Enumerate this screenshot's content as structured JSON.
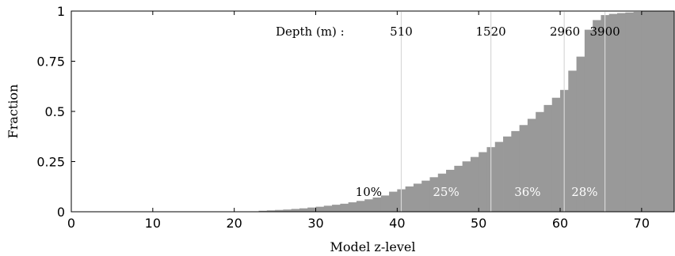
{
  "chart_data": {
    "type": "bar",
    "title": "",
    "xlabel": "Model z-level",
    "ylabel": "Fraction",
    "xlim": [
      0,
      74
    ],
    "ylim": [
      0,
      1
    ],
    "x_ticks": [
      "0",
      "10",
      "20",
      "30",
      "40",
      "50",
      "60",
      "70"
    ],
    "y_ticks": [
      "0",
      "0.25",
      "0.5",
      "0.75",
      "1"
    ],
    "grid": false,
    "legend": "none",
    "bar_color": "#999999",
    "x": [
      1,
      2,
      3,
      4,
      5,
      6,
      7,
      8,
      9,
      10,
      11,
      12,
      13,
      14,
      15,
      16,
      17,
      18,
      19,
      20,
      21,
      22,
      23,
      24,
      25,
      26,
      27,
      28,
      29,
      30,
      31,
      32,
      33,
      34,
      35,
      36,
      37,
      38,
      39,
      40,
      41,
      42,
      43,
      44,
      45,
      46,
      47,
      48,
      49,
      50,
      51,
      52,
      53,
      54,
      55,
      56,
      57,
      58,
      59,
      60,
      61,
      62,
      63,
      64,
      65,
      66,
      67,
      68,
      69,
      70,
      71,
      72,
      73,
      74
    ],
    "values": [
      0,
      0,
      0,
      0,
      0,
      0,
      0,
      0,
      0,
      0,
      0,
      0,
      0,
      0,
      0,
      0,
      0,
      0,
      0,
      0,
      0,
      0,
      0.002,
      0.005,
      0.007,
      0.009,
      0.011,
      0.014,
      0.017,
      0.021,
      0.025,
      0.03,
      0.035,
      0.04,
      0.047,
      0.054,
      0.062,
      0.071,
      0.081,
      0.1,
      0.112,
      0.126,
      0.14,
      0.155,
      0.172,
      0.19,
      0.209,
      0.229,
      0.251,
      0.273,
      0.297,
      0.322,
      0.348,
      0.375,
      0.402,
      0.432,
      0.463,
      0.497,
      0.532,
      0.568,
      0.607,
      0.703,
      0.773,
      0.907,
      0.955,
      0.98,
      0.986,
      0.99,
      0.993,
      0.996,
      0.998,
      0.999,
      1.0,
      1.0
    ],
    "depth_prefix": "Depth (m) :",
    "depth_markers": [
      {
        "level": 40.5,
        "label": "510"
      },
      {
        "level": 51.5,
        "label": "1520"
      },
      {
        "level": 60.5,
        "label": "2960"
      },
      {
        "level": 65.5,
        "label": "3900"
      }
    ],
    "percent_labels": [
      {
        "x": 36.5,
        "text": "10%",
        "color": "#000000"
      },
      {
        "x": 46,
        "text": "25%",
        "color": "#ffffff"
      },
      {
        "x": 56,
        "text": "36%",
        "color": "#ffffff"
      },
      {
        "x": 63,
        "text": "28%",
        "color": "#ffffff"
      }
    ]
  }
}
